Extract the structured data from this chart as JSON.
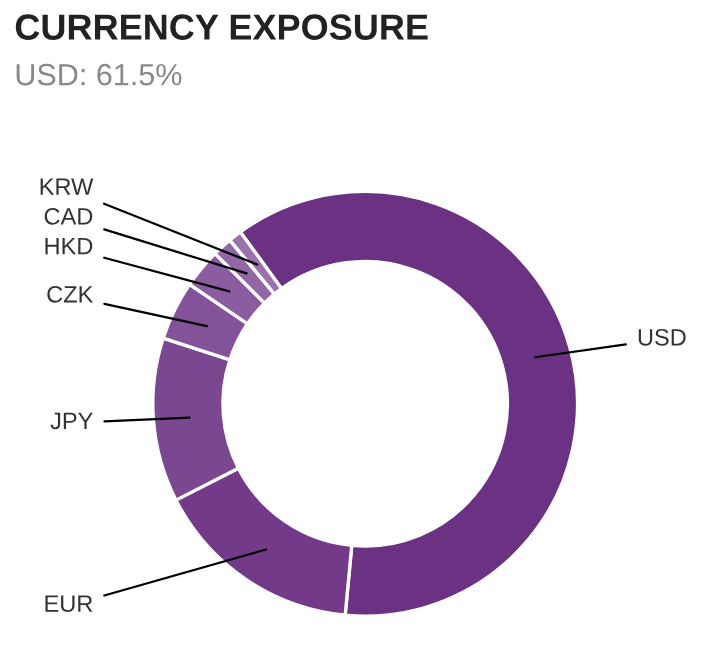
{
  "chart_data": {
    "type": "donut",
    "title": "CURRENCY EXPOSURE",
    "subtitle": "USD: 61.5%",
    "categories": [
      "USD",
      "EUR",
      "JPY",
      "CZK",
      "HKD",
      "CAD",
      "KRW"
    ],
    "values": [
      61.5,
      16,
      12.5,
      4.5,
      3,
      1.5,
      1
    ],
    "colors": [
      "#6b3283",
      "#733a89",
      "#7c4791",
      "#845299",
      "#8b5ca0",
      "#9366a6",
      "#9a70ad"
    ]
  }
}
